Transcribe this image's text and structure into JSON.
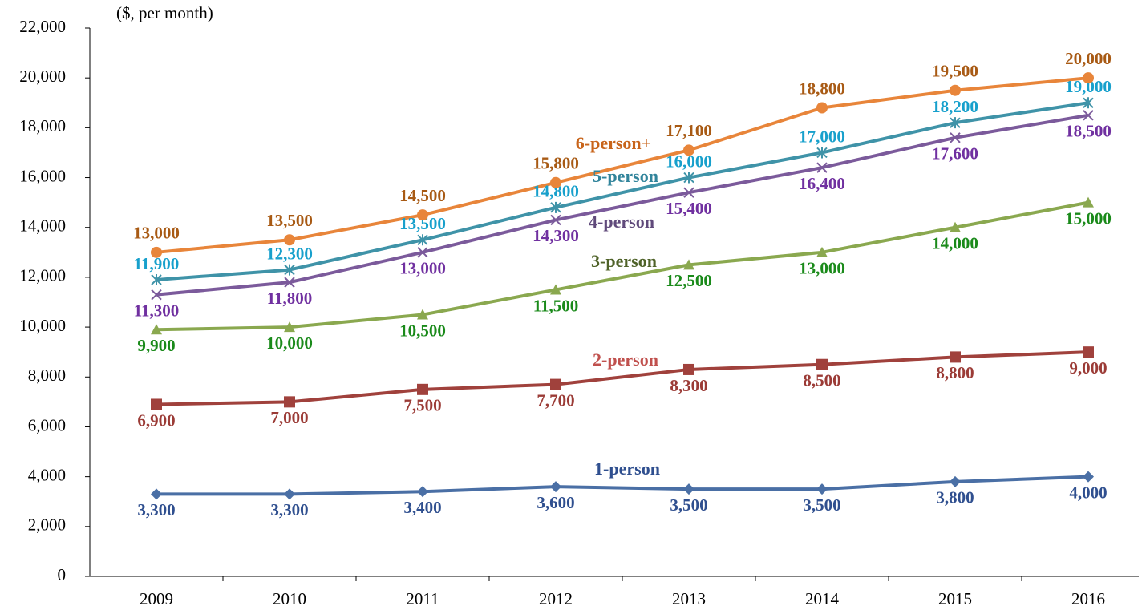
{
  "chart_data": {
    "type": "line",
    "y_label": "($, per month)",
    "categories": [
      "2009",
      "2010",
      "2011",
      "2012",
      "2013",
      "2014",
      "2015",
      "2016"
    ],
    "ylim": [
      0,
      22000
    ],
    "yticks": [
      0,
      {
        "value": 2000,
        "label": "2,000"
      },
      {
        "value": 4000,
        "label": "4,000"
      },
      {
        "value": 6000,
        "label": "6,000"
      },
      {
        "value": 8000,
        "label": "8,000"
      },
      {
        "value": 10000,
        "label": "10,000"
      },
      {
        "value": 12000,
        "label": "12,000"
      },
      {
        "value": 14000,
        "label": "14,000"
      },
      {
        "value": 16000,
        "label": "16,000"
      },
      {
        "value": 18000,
        "label": "18,000"
      },
      {
        "value": 20000,
        "label": "20,000"
      },
      {
        "value": 22000,
        "label": "22,000"
      }
    ],
    "grid": false,
    "series": [
      {
        "name": "1-person",
        "color": "#4a6fa5",
        "label_color": "#2f4f8f",
        "name_color": "#2f4f8f",
        "marker": "diamond",
        "values": [
          3300,
          3300,
          3400,
          3600,
          3500,
          3500,
          3800,
          4000
        ],
        "value_labels": [
          "3,300",
          "3,300",
          "3,400",
          "3,600",
          "3,500",
          "3,500",
          "3,800",
          "4,000"
        ]
      },
      {
        "name": "2-person",
        "color": "#a0413c",
        "label_color": "#9b3b36",
        "name_color": "#c0504d",
        "marker": "square",
        "values": [
          6900,
          7000,
          7500,
          7700,
          8300,
          8500,
          8800,
          9000
        ],
        "value_labels": [
          "6,900",
          "7,000",
          "7,500",
          "7,700",
          "8,300",
          "8,500",
          "8,800",
          "9,000"
        ]
      },
      {
        "name": "3-person",
        "color": "#8aa84f",
        "label_color": "#1a8a1a",
        "name_color": "#4f6228",
        "marker": "triangle",
        "values": [
          9900,
          10000,
          10500,
          11500,
          12500,
          13000,
          14000,
          15000
        ],
        "value_labels": [
          "9,900",
          "10,000",
          "10,500",
          "11,500",
          "12,500",
          "13,000",
          "14,000",
          "15,000"
        ]
      },
      {
        "name": "4-person",
        "color": "#7b5a9b",
        "label_color": "#7030a0",
        "name_color": "#604a7b",
        "marker": "x",
        "values": [
          11300,
          11800,
          13000,
          14300,
          15400,
          16400,
          17600,
          18500
        ],
        "value_labels": [
          "11,300",
          "11,800",
          "13,000",
          "14,300",
          "15,400",
          "16,400",
          "17,600",
          "18,500"
        ]
      },
      {
        "name": "5-person",
        "color": "#3f93a8",
        "label_color": "#17a0cc",
        "name_color": "#31849b",
        "marker": "star",
        "values": [
          11900,
          12300,
          13500,
          14800,
          16000,
          17000,
          18200,
          19000
        ],
        "value_labels": [
          "11,900",
          "12,300",
          "13,500",
          "14,800",
          "16,000",
          "17,000",
          "18,200",
          "19,000"
        ]
      },
      {
        "name": "6-person+",
        "color": "#e8853a",
        "label_color": "#a85a14",
        "name_color": "#c8641a",
        "marker": "circle",
        "values": [
          13000,
          13500,
          14500,
          15800,
          17100,
          18800,
          19500,
          20000
        ],
        "value_labels": [
          "13,000",
          "13,500",
          "14,500",
          "15,800",
          "17,100",
          "18,800",
          "19,500",
          "20,000"
        ]
      }
    ]
  }
}
